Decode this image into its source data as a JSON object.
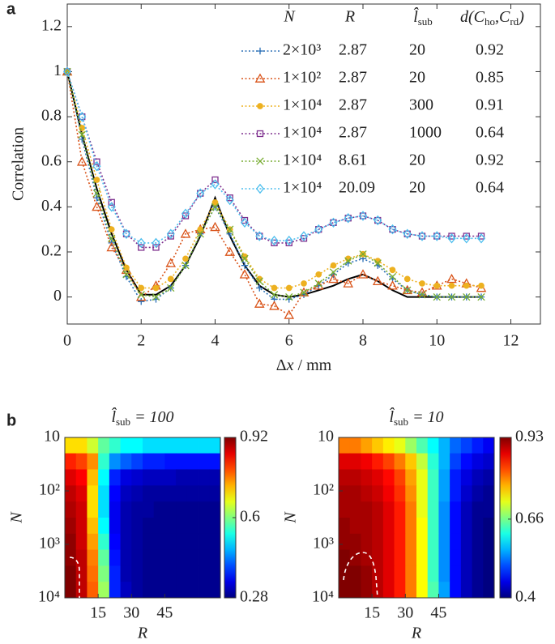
{
  "chart_data": [
    {
      "type": "line",
      "panel_label": "a",
      "x_label": {
        "parts": [
          {
            "text": "Δ"
          },
          {
            "italic": "x"
          },
          {
            "text": " / mm"
          }
        ]
      },
      "y_label": "Correlation",
      "xlim": [
        0,
        12.8
      ],
      "xticks": [
        0,
        2,
        4,
        6,
        8,
        10,
        12
      ],
      "ylim": [
        -0.12,
        1.3
      ],
      "yticks": [
        0,
        0.2,
        0.4,
        0.6,
        0.8,
        1,
        1.2
      ],
      "legend_headers": [
        "N",
        "R",
        {
          "parts": [
            {
              "text": "l̂"
            },
            {
              "sub": "sub"
            }
          ]
        },
        {
          "parts": [
            {
              "text": "d(C"
            },
            {
              "sub": "ho"
            },
            {
              "text": ",C"
            },
            {
              "sub": "rd"
            },
            {
              "text": ")"
            }
          ]
        }
      ],
      "x": [
        0,
        0.4,
        0.8,
        1.2,
        1.6,
        2,
        2.4,
        2.8,
        3.2,
        3.6,
        4,
        4.4,
        4.8,
        5.2,
        5.6,
        6,
        6.4,
        6.8,
        7.2,
        7.6,
        8,
        8.4,
        8.8,
        9.2,
        9.6,
        10,
        10.4,
        10.8,
        11.2
      ],
      "series": [
        {
          "color": "#000000",
          "line": "solid",
          "values": [
            1,
            0.72,
            0.48,
            0.28,
            0.12,
            0.01,
            0.01,
            0.05,
            0.14,
            0.27,
            0.44,
            0.27,
            0.14,
            0.05,
            0.01,
            0,
            0.01,
            0.03,
            0.05,
            0.08,
            0.1,
            0.07,
            0.03,
            0,
            0,
            0,
            0,
            0,
            0
          ]
        },
        {
          "name": "2×10³",
          "R": 2.87,
          "l_sub": 20,
          "d": 0.92,
          "color": "#2a6fb6",
          "line": "dotted",
          "marker": "plus",
          "values": [
            1,
            0.7,
            0.44,
            0.24,
            0.09,
            -0.02,
            -0.01,
            0.04,
            0.14,
            0.28,
            0.4,
            0.28,
            0.14,
            0.04,
            -0.01,
            -0.01,
            0.01,
            0.05,
            0.1,
            0.15,
            0.17,
            0.14,
            0.08,
            0.03,
            0.01,
            0,
            0,
            0,
            0
          ]
        },
        {
          "name": "1×10²",
          "R": 2.87,
          "l_sub": 20,
          "d": 0.85,
          "color": "#d95319",
          "line": "dotted",
          "marker": "triangle",
          "values": [
            1,
            0.6,
            0.4,
            0.22,
            0.12,
            0,
            0.05,
            0.15,
            0.28,
            0.3,
            0.31,
            0.2,
            0.1,
            -0.03,
            -0.04,
            -0.08,
            0.02,
            0.05,
            0.08,
            0.06,
            0.1,
            0.07,
            0.05,
            0.03,
            0.02,
            0.05,
            0.08,
            0.06,
            0.04
          ]
        },
        {
          "name": "1×10⁴",
          "R": 2.87,
          "l_sub": 300,
          "d": 0.91,
          "color": "#edb120",
          "line": "dotted",
          "marker": "circle",
          "values": [
            1,
            0.75,
            0.52,
            0.3,
            0.13,
            0.04,
            0.04,
            0.08,
            0.17,
            0.3,
            0.42,
            0.3,
            0.18,
            0.08,
            0.04,
            0.04,
            0.06,
            0.1,
            0.14,
            0.17,
            0.19,
            0.16,
            0.12,
            0.08,
            0.06,
            0.05,
            0.05,
            0.05,
            0.05
          ]
        },
        {
          "name": "1×10⁴",
          "R": 2.87,
          "l_sub": 1000,
          "d": 0.64,
          "color": "#7e2f8e",
          "line": "dotted",
          "marker": "square",
          "values": [
            1,
            0.8,
            0.6,
            0.42,
            0.28,
            0.22,
            0.22,
            0.27,
            0.36,
            0.46,
            0.52,
            0.44,
            0.34,
            0.27,
            0.24,
            0.24,
            0.26,
            0.3,
            0.33,
            0.35,
            0.36,
            0.34,
            0.3,
            0.28,
            0.27,
            0.27,
            0.27,
            0.27,
            0.27
          ]
        },
        {
          "name": "1×10⁴",
          "R": 8.61,
          "l_sub": 20,
          "d": 0.92,
          "color": "#77ac30",
          "line": "dotted",
          "marker": "x",
          "values": [
            1,
            0.72,
            0.46,
            0.26,
            0.1,
            0.01,
            0,
            0.04,
            0.14,
            0.28,
            0.4,
            0.3,
            0.17,
            0.07,
            0.01,
            0,
            0.02,
            0.06,
            0.11,
            0.16,
            0.19,
            0.15,
            0.09,
            0.03,
            0.01,
            0,
            0,
            0,
            0
          ]
        },
        {
          "name": "1×10⁴",
          "R": 20.09,
          "l_sub": 20,
          "d": 0.64,
          "color": "#4dbeee",
          "line": "dotted",
          "marker": "diamond",
          "values": [
            1,
            0.8,
            0.58,
            0.4,
            0.28,
            0.24,
            0.24,
            0.28,
            0.37,
            0.46,
            0.5,
            0.43,
            0.33,
            0.27,
            0.25,
            0.25,
            0.27,
            0.3,
            0.33,
            0.35,
            0.36,
            0.34,
            0.3,
            0.28,
            0.27,
            0.27,
            0.26,
            0.26,
            0.26
          ]
        }
      ]
    },
    {
      "type": "heatmap",
      "panel_label": "b",
      "title": {
        "parts": [
          {
            "text": "l̂"
          },
          {
            "sub": "sub"
          },
          {
            "text": " = 100"
          }
        ]
      },
      "x_label": "R",
      "y_label": "N",
      "xlim": [
        0,
        70
      ],
      "xticks": [
        15,
        30,
        45
      ],
      "ylim": [
        10,
        10000
      ],
      "y_log": true,
      "y_reversed": true,
      "yticks": [
        10,
        {
          "value": 100,
          "label": "10²"
        },
        {
          "value": 1000,
          "label": "10³"
        },
        {
          "value": 10000,
          "label": "10⁴"
        }
      ],
      "clim": [
        0.28,
        0.92
      ],
      "cticks": [
        0.28,
        0.6,
        0.92
      ],
      "colormap": "jet",
      "x": [
        2.5,
        7.5,
        12.5,
        17.5,
        22.5,
        27.5,
        32.5,
        37.5,
        42.5,
        47.5,
        52.5,
        57.5,
        62.5,
        67.5
      ],
      "y": [
        14,
        28,
        56,
        112,
        224,
        447,
        891,
        1778,
        3548,
        7079
      ],
      "values": [
        [
          0.7,
          0.7,
          0.65,
          0.58,
          0.55,
          0.52,
          0.52,
          0.5,
          0.5,
          0.5,
          0.5,
          0.5,
          0.5,
          0.5
        ],
        [
          0.82,
          0.8,
          0.75,
          0.55,
          0.45,
          0.42,
          0.4,
          0.38,
          0.38,
          0.37,
          0.37,
          0.37,
          0.37,
          0.37
        ],
        [
          0.86,
          0.84,
          0.72,
          0.52,
          0.38,
          0.34,
          0.33,
          0.32,
          0.32,
          0.32,
          0.31,
          0.31,
          0.31,
          0.31
        ],
        [
          0.88,
          0.86,
          0.7,
          0.5,
          0.36,
          0.32,
          0.31,
          0.3,
          0.3,
          0.3,
          0.3,
          0.3,
          0.3,
          0.3
        ],
        [
          0.89,
          0.87,
          0.7,
          0.5,
          0.35,
          0.31,
          0.3,
          0.3,
          0.29,
          0.29,
          0.29,
          0.29,
          0.29,
          0.29
        ],
        [
          0.9,
          0.87,
          0.72,
          0.52,
          0.35,
          0.31,
          0.3,
          0.29,
          0.29,
          0.29,
          0.29,
          0.29,
          0.29,
          0.29
        ],
        [
          0.91,
          0.87,
          0.74,
          0.55,
          0.36,
          0.31,
          0.3,
          0.29,
          0.29,
          0.29,
          0.29,
          0.29,
          0.29,
          0.29
        ],
        [
          0.91,
          0.88,
          0.76,
          0.58,
          0.37,
          0.31,
          0.3,
          0.29,
          0.29,
          0.29,
          0.29,
          0.29,
          0.29,
          0.29
        ],
        [
          0.92,
          0.88,
          0.77,
          0.6,
          0.38,
          0.31,
          0.3,
          0.29,
          0.29,
          0.29,
          0.29,
          0.29,
          0.29,
          0.29
        ],
        [
          0.92,
          0.88,
          0.78,
          0.62,
          0.38,
          0.32,
          0.3,
          0.29,
          0.29,
          0.29,
          0.29,
          0.29,
          0.29,
          0.29
        ]
      ]
    },
    {
      "type": "heatmap",
      "title": {
        "parts": [
          {
            "text": "l̂"
          },
          {
            "sub": "sub"
          },
          {
            "text": " = 10"
          }
        ]
      },
      "x_label": "R",
      "y_label": "N",
      "xlim": [
        0,
        70
      ],
      "xticks": [
        15,
        30,
        45
      ],
      "ylim": [
        10,
        10000
      ],
      "y_log": true,
      "y_reversed": true,
      "yticks": [
        10,
        {
          "value": 100,
          "label": "10²"
        },
        {
          "value": 1000,
          "label": "10³"
        },
        {
          "value": 10000,
          "label": "10⁴"
        }
      ],
      "clim": [
        0.4,
        0.93
      ],
      "cticks": [
        0.4,
        0.66,
        0.93
      ],
      "colormap": "jet",
      "x": [
        2.5,
        7.5,
        12.5,
        17.5,
        22.5,
        27.5,
        32.5,
        37.5,
        42.5,
        47.5,
        52.5,
        57.5,
        62.5,
        67.5
      ],
      "y": [
        14,
        28,
        56,
        112,
        224,
        447,
        891,
        1778,
        3548,
        7079
      ],
      "values": [
        [
          0.8,
          0.8,
          0.78,
          0.76,
          0.74,
          0.72,
          0.68,
          0.64,
          0.6,
          0.56,
          0.52,
          0.5,
          0.48,
          0.46
        ],
        [
          0.88,
          0.88,
          0.87,
          0.85,
          0.83,
          0.8,
          0.76,
          0.7,
          0.62,
          0.56,
          0.5,
          0.47,
          0.45,
          0.44
        ],
        [
          0.9,
          0.9,
          0.89,
          0.88,
          0.86,
          0.83,
          0.78,
          0.72,
          0.63,
          0.55,
          0.48,
          0.45,
          0.43,
          0.42
        ],
        [
          0.91,
          0.91,
          0.9,
          0.89,
          0.87,
          0.84,
          0.79,
          0.72,
          0.63,
          0.55,
          0.48,
          0.44,
          0.42,
          0.41
        ],
        [
          0.91,
          0.91,
          0.91,
          0.9,
          0.88,
          0.85,
          0.8,
          0.72,
          0.63,
          0.54,
          0.47,
          0.43,
          0.41,
          0.41
        ],
        [
          0.92,
          0.91,
          0.91,
          0.9,
          0.88,
          0.85,
          0.8,
          0.73,
          0.63,
          0.54,
          0.47,
          0.43,
          0.41,
          0.4
        ],
        [
          0.92,
          0.92,
          0.91,
          0.9,
          0.88,
          0.85,
          0.8,
          0.73,
          0.63,
          0.54,
          0.47,
          0.43,
          0.41,
          0.4
        ],
        [
          0.93,
          0.92,
          0.91,
          0.9,
          0.88,
          0.85,
          0.8,
          0.73,
          0.63,
          0.54,
          0.47,
          0.43,
          0.41,
          0.4
        ],
        [
          0.93,
          0.93,
          0.92,
          0.9,
          0.88,
          0.85,
          0.8,
          0.73,
          0.63,
          0.54,
          0.47,
          0.43,
          0.41,
          0.4
        ],
        [
          0.93,
          0.93,
          0.92,
          0.9,
          0.88,
          0.85,
          0.8,
          0.73,
          0.64,
          0.55,
          0.47,
          0.43,
          0.41,
          0.4
        ]
      ]
    }
  ]
}
